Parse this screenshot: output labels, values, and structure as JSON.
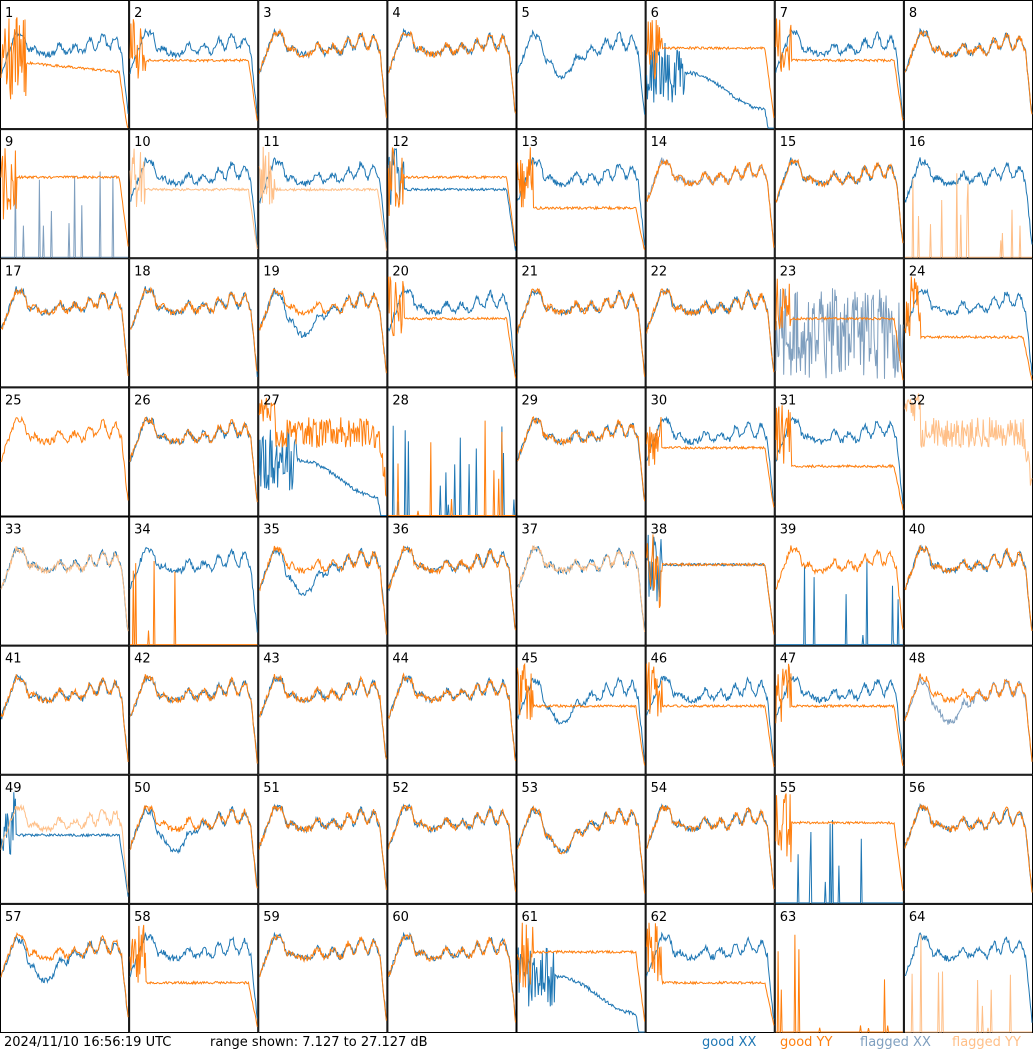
{
  "chart_data": {
    "type": "line",
    "title": "",
    "timestamp": "2024/11/10 16:56:19 UTC",
    "range_text": "range shown: 7.127 to 27.127 dB",
    "y_range_db": [
      7.127,
      27.127
    ],
    "grid": {
      "rows": 8,
      "cols": 8
    },
    "colors": {
      "good_xx": "#1f77b4",
      "good_yy": "#ff7f0e",
      "flagged_xx": "#7f9fbf",
      "flagged_yy": "#ffbf87"
    },
    "legend": [
      {
        "label": "good XX",
        "key": "good_xx"
      },
      {
        "label": "good YY",
        "key": "good_yy"
      },
      {
        "label": "flagged XX",
        "key": "flagged_xx"
      },
      {
        "label": "flagged YY",
        "key": "flagged_yy"
      }
    ],
    "panels": [
      {
        "n": "1",
        "xx": "good",
        "yy": "good",
        "xxp": "normal",
        "yyp": "lowdrop"
      },
      {
        "n": "2",
        "xx": "good",
        "yy": "good",
        "xxp": "normal",
        "yyp": "flat_mid"
      },
      {
        "n": "3",
        "xx": "good",
        "yy": "good",
        "xxp": "normal",
        "yyp": "normal"
      },
      {
        "n": "4",
        "xx": "good",
        "yy": "good",
        "xxp": "normal",
        "yyp": "normal"
      },
      {
        "n": "5",
        "xx": "good",
        "yy": "flagged",
        "xxp": "lowdip",
        "yyp": "none"
      },
      {
        "n": "6",
        "xx": "good",
        "yy": "good",
        "xxp": "lowdip_spiky",
        "yyp": "flat_high"
      },
      {
        "n": "7",
        "xx": "good",
        "yy": "good",
        "xxp": "normal",
        "yyp": "flat_mid"
      },
      {
        "n": "8",
        "xx": "good",
        "yy": "good",
        "xxp": "normal",
        "yyp": "normal"
      },
      {
        "n": "9",
        "xx": "flagged",
        "yy": "good",
        "xxp": "spikes",
        "yyp": "flat_high"
      },
      {
        "n": "10",
        "xx": "good",
        "yy": "flagged",
        "xxp": "normal",
        "yyp": "flat_mid"
      },
      {
        "n": "11",
        "xx": "good",
        "yy": "flagged",
        "xxp": "normal",
        "yyp": "flat_mid"
      },
      {
        "n": "12",
        "xx": "good",
        "yy": "good",
        "xxp": "flat_mid",
        "yyp": "flat_high"
      },
      {
        "n": "13",
        "xx": "good",
        "yy": "good",
        "xxp": "normal",
        "yyp": "flat_low"
      },
      {
        "n": "14",
        "xx": "flagged",
        "yy": "good",
        "xxp": "normal",
        "yyp": "normal"
      },
      {
        "n": "15",
        "xx": "good",
        "yy": "good",
        "xxp": "normal",
        "yyp": "normal"
      },
      {
        "n": "16",
        "xx": "good",
        "yy": "flagged",
        "xxp": "normal",
        "yyp": "spikes"
      },
      {
        "n": "17",
        "xx": "good",
        "yy": "good",
        "xxp": "normal",
        "yyp": "normal"
      },
      {
        "n": "18",
        "xx": "good",
        "yy": "good",
        "xxp": "normal",
        "yyp": "normal"
      },
      {
        "n": "19",
        "xx": "good",
        "yy": "good",
        "xxp": "lowdip",
        "yyp": "normal"
      },
      {
        "n": "20",
        "xx": "good",
        "yy": "good",
        "xxp": "normal",
        "yyp": "flat_mid"
      },
      {
        "n": "21",
        "xx": "good",
        "yy": "good",
        "xxp": "normal",
        "yyp": "normal"
      },
      {
        "n": "22",
        "xx": "good",
        "yy": "good",
        "xxp": "normal",
        "yyp": "normal"
      },
      {
        "n": "23",
        "xx": "flagged",
        "yy": "good",
        "xxp": "noisy_full",
        "yyp": "flat_mid"
      },
      {
        "n": "24",
        "xx": "good",
        "yy": "good",
        "xxp": "normal",
        "yyp": "flat_low"
      },
      {
        "n": "25",
        "xx": "good",
        "yy": "good",
        "xxp": "none",
        "yyp": "normal"
      },
      {
        "n": "26",
        "xx": "good",
        "yy": "good",
        "xxp": "normal",
        "yyp": "normal"
      },
      {
        "n": "27",
        "xx": "good",
        "yy": "good",
        "xxp": "lowdip_spiky",
        "yyp": "noisy_high"
      },
      {
        "n": "28",
        "xx": "good",
        "yy": "good",
        "xxp": "spikes",
        "yyp": "spikes"
      },
      {
        "n": "29",
        "xx": "good",
        "yy": "good",
        "xxp": "normal",
        "yyp": "normal"
      },
      {
        "n": "30",
        "xx": "good",
        "yy": "good",
        "xxp": "normal",
        "yyp": "flat_mid"
      },
      {
        "n": "31",
        "xx": "good",
        "yy": "good",
        "xxp": "normal",
        "yyp": "flat_low"
      },
      {
        "n": "32",
        "xx": "flagged",
        "yy": "flagged",
        "xxp": "none",
        "yyp": "noisy_high"
      },
      {
        "n": "33",
        "xx": "good",
        "yy": "flagged",
        "xxp": "normal",
        "yyp": "normal"
      },
      {
        "n": "34",
        "xx": "good",
        "yy": "good",
        "xxp": "normal",
        "yyp": "spikes"
      },
      {
        "n": "35",
        "xx": "good",
        "yy": "good",
        "xxp": "lowdip",
        "yyp": "normal"
      },
      {
        "n": "36",
        "xx": "good",
        "yy": "good",
        "xxp": "normal",
        "yyp": "normal"
      },
      {
        "n": "37",
        "xx": "good",
        "yy": "flagged",
        "xxp": "normal",
        "yyp": "normal"
      },
      {
        "n": "38",
        "xx": "good",
        "yy": "good",
        "xxp": "flat_high",
        "yyp": "flat_high"
      },
      {
        "n": "39",
        "xx": "good",
        "yy": "good",
        "xxp": "spikes",
        "yyp": "normal"
      },
      {
        "n": "40",
        "xx": "good",
        "yy": "good",
        "xxp": "normal",
        "yyp": "normal"
      },
      {
        "n": "41",
        "xx": "good",
        "yy": "good",
        "xxp": "normal",
        "yyp": "normal"
      },
      {
        "n": "42",
        "xx": "good",
        "yy": "good",
        "xxp": "normal",
        "yyp": "normal"
      },
      {
        "n": "43",
        "xx": "good",
        "yy": "good",
        "xxp": "normal",
        "yyp": "normal"
      },
      {
        "n": "44",
        "xx": "good",
        "yy": "good",
        "xxp": "normal",
        "yyp": "normal"
      },
      {
        "n": "45",
        "xx": "good",
        "yy": "good",
        "xxp": "lowdip",
        "yyp": "flat_mid"
      },
      {
        "n": "46",
        "xx": "good",
        "yy": "good",
        "xxp": "normal",
        "yyp": "flat_mid"
      },
      {
        "n": "47",
        "xx": "good",
        "yy": "good",
        "xxp": "normal",
        "yyp": "flat_mid"
      },
      {
        "n": "48",
        "xx": "flagged",
        "yy": "good",
        "xxp": "lowdip",
        "yyp": "normal"
      },
      {
        "n": "49",
        "xx": "good",
        "yy": "flagged",
        "xxp": "flat_mid",
        "yyp": "normal"
      },
      {
        "n": "50",
        "xx": "good",
        "yy": "good",
        "xxp": "lowdip",
        "yyp": "normal"
      },
      {
        "n": "51",
        "xx": "good",
        "yy": "good",
        "xxp": "normal",
        "yyp": "normal"
      },
      {
        "n": "52",
        "xx": "good",
        "yy": "good",
        "xxp": "normal",
        "yyp": "normal"
      },
      {
        "n": "53",
        "xx": "good",
        "yy": "good",
        "xxp": "lowdip",
        "yyp": "lowdip"
      },
      {
        "n": "54",
        "xx": "good",
        "yy": "good",
        "xxp": "normal",
        "yyp": "normal"
      },
      {
        "n": "55",
        "xx": "good",
        "yy": "good",
        "xxp": "spikes",
        "yyp": "flat_high"
      },
      {
        "n": "56",
        "xx": "good",
        "yy": "good",
        "xxp": "normal",
        "yyp": "normal"
      },
      {
        "n": "57",
        "xx": "good",
        "yy": "good",
        "xxp": "lowdip",
        "yyp": "normal"
      },
      {
        "n": "58",
        "xx": "good",
        "yy": "good",
        "xxp": "normal",
        "yyp": "flat_low"
      },
      {
        "n": "59",
        "xx": "good",
        "yy": "good",
        "xxp": "normal",
        "yyp": "normal"
      },
      {
        "n": "60",
        "xx": "good",
        "yy": "good",
        "xxp": "normal",
        "yyp": "normal"
      },
      {
        "n": "61",
        "xx": "good",
        "yy": "good",
        "xxp": "lowdip_spiky",
        "yyp": "flat_high"
      },
      {
        "n": "62",
        "xx": "good",
        "yy": "good",
        "xxp": "normal",
        "yyp": "flat_low"
      },
      {
        "n": "63",
        "xx": "flagged",
        "yy": "good",
        "xxp": "none",
        "yyp": "spikes"
      },
      {
        "n": "64",
        "xx": "good",
        "yy": "flagged",
        "xxp": "normal",
        "yyp": "spikes"
      }
    ]
  }
}
